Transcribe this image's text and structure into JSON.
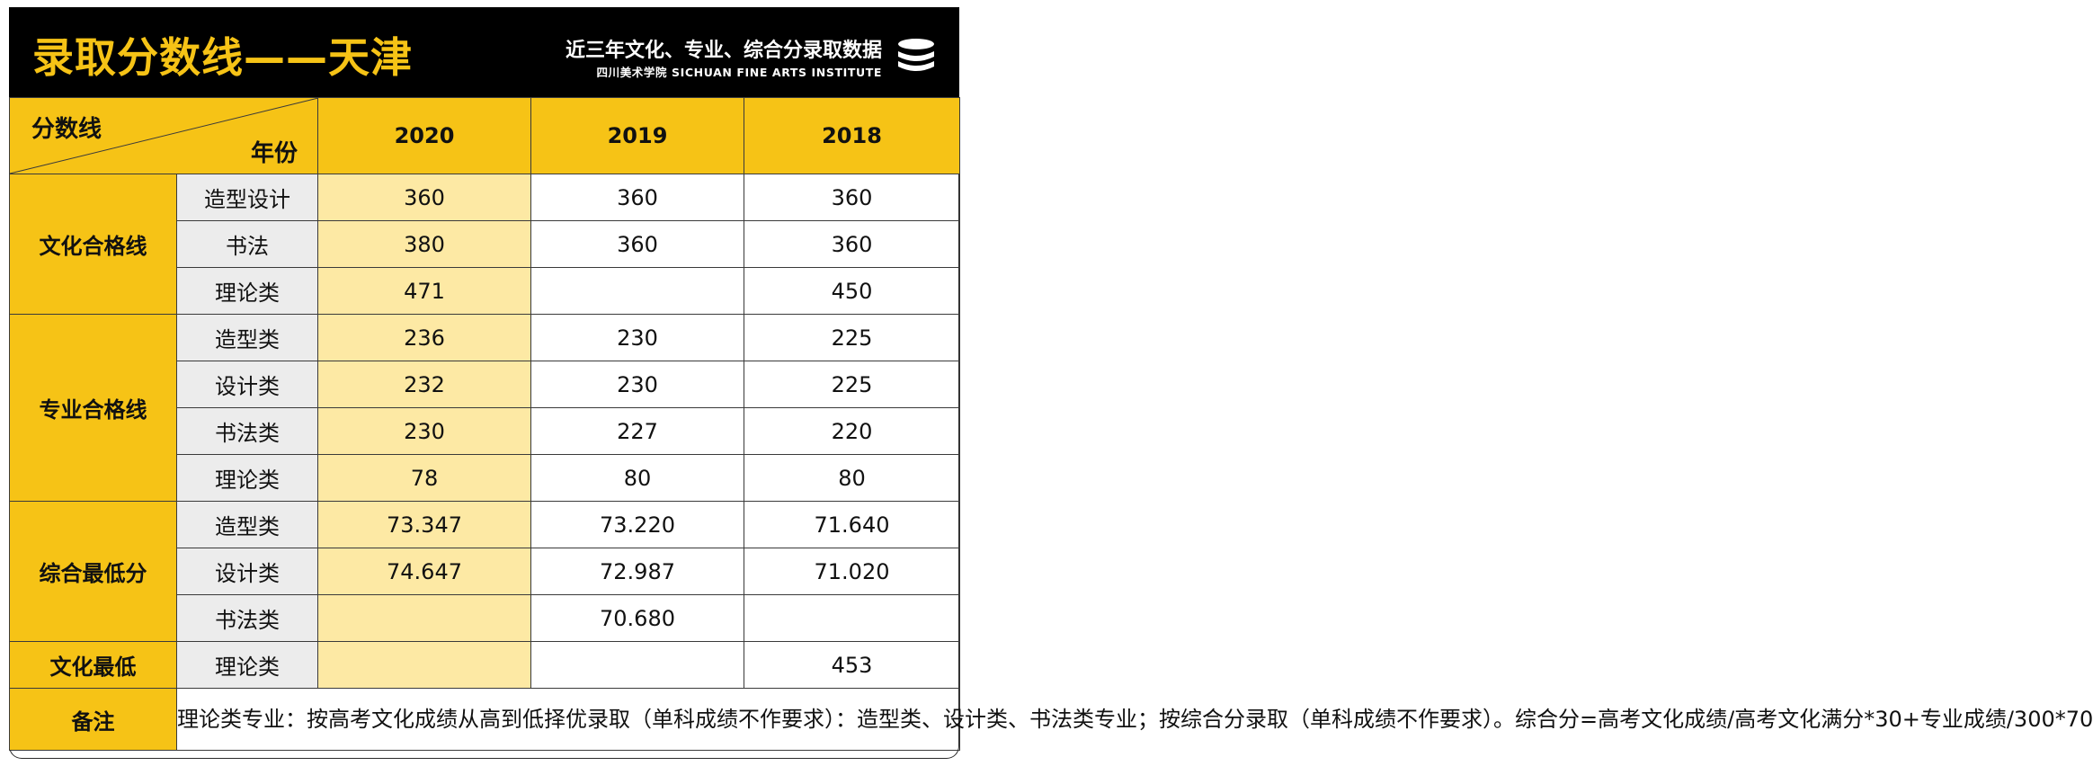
{
  "header": {
    "title": "录取分数线——天津",
    "subtitle": "近三年文化、专业、综合分录取数据",
    "subtitle_en": "四川美术学院 SICHUAN FINE ARTS INSTITUTE",
    "logo_icon": "stacked-discs-logo"
  },
  "table": {
    "corner_top": "分数线",
    "corner_bottom": "年份",
    "years": [
      "2020",
      "2019",
      "2018"
    ],
    "groups": [
      {
        "category": "文化合格线",
        "rows": [
          {
            "sub": "造型设计",
            "values": [
              "360",
              "360",
              "360"
            ]
          },
          {
            "sub": "书法",
            "values": [
              "380",
              "360",
              "360"
            ]
          },
          {
            "sub": "理论类",
            "values": [
              "471",
              "",
              "450"
            ]
          }
        ]
      },
      {
        "category": "专业合格线",
        "rows": [
          {
            "sub": "造型类",
            "values": [
              "236",
              "230",
              "225"
            ]
          },
          {
            "sub": "设计类",
            "values": [
              "232",
              "230",
              "225"
            ]
          },
          {
            "sub": "书法类",
            "values": [
              "230",
              "227",
              "220"
            ]
          },
          {
            "sub": "理论类",
            "values": [
              "78",
              "80",
              "80"
            ]
          }
        ]
      },
      {
        "category": "综合最低分",
        "rows": [
          {
            "sub": "造型类",
            "values": [
              "73.347",
              "73.220",
              "71.640"
            ]
          },
          {
            "sub": "设计类",
            "values": [
              "74.647",
              "72.987",
              "71.020"
            ]
          },
          {
            "sub": "书法类",
            "values": [
              "",
              "70.680",
              ""
            ]
          }
        ]
      },
      {
        "category": "文化最低",
        "rows": [
          {
            "sub": "理论类",
            "values": [
              "",
              "",
              "453"
            ]
          }
        ]
      }
    ],
    "note_label": "备注",
    "note_text": "理论类专业：按高考文化成绩从高到低择优录取（单科成绩不作要求）：造型类、设计类、书法类专业；按综合分录取（单科成绩不作要求）。综合分=高考文化成绩/高考文化满分*30+专业成绩/300*70"
  },
  "colors": {
    "accent_yellow": "#f6c316",
    "highlight_yellow": "#fde9a4",
    "header_black": "#000000",
    "subcell_gray": "#ececec"
  }
}
